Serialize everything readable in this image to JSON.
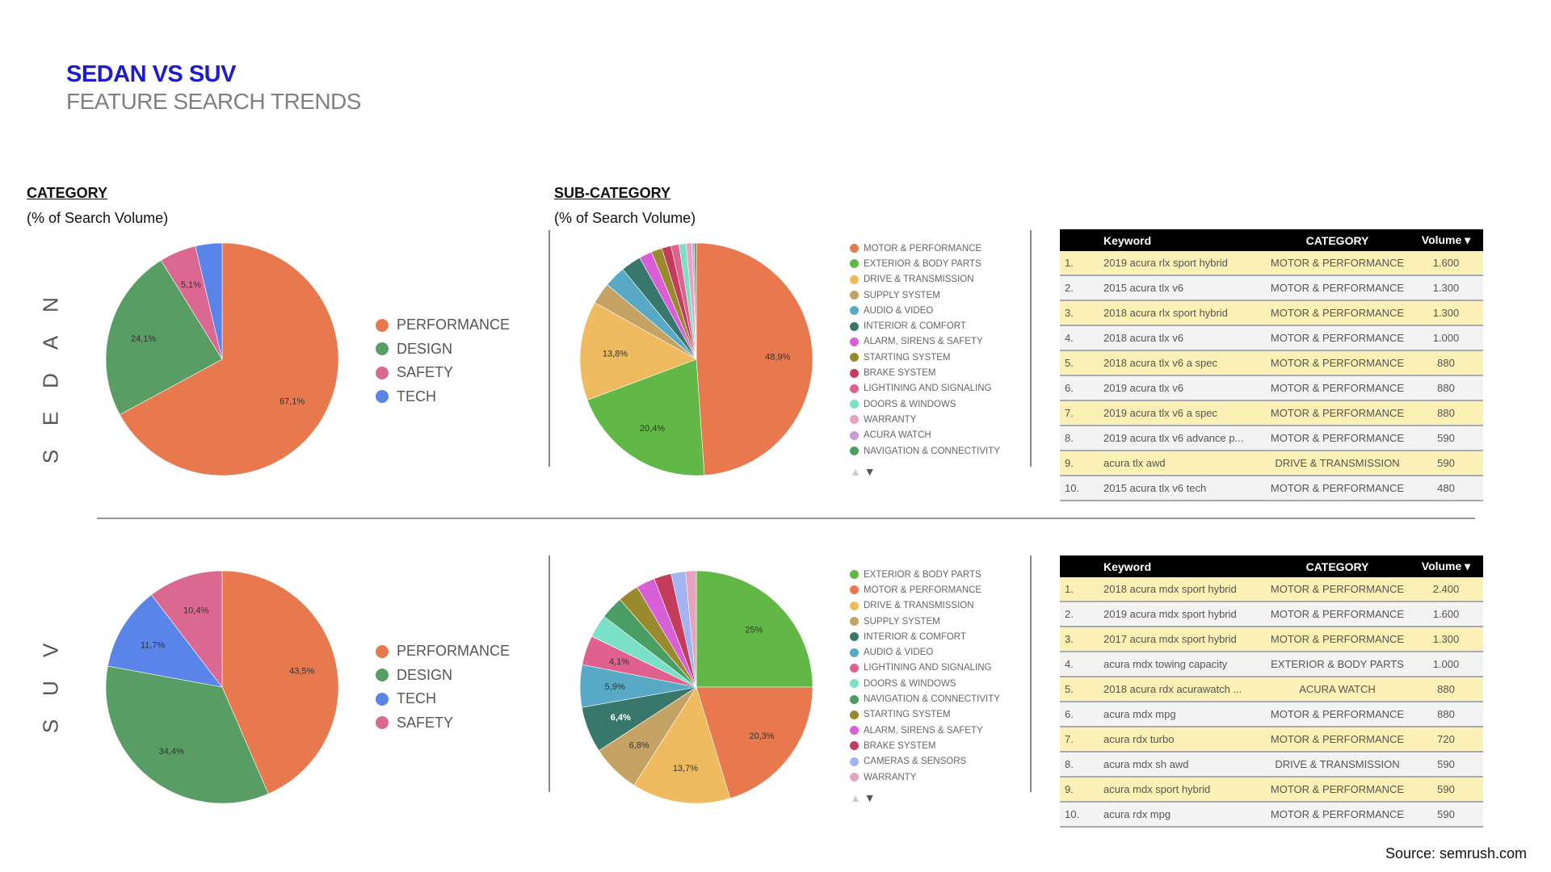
{
  "header": {
    "title": "SEDAN VS SUV",
    "subtitle": "FEATURE SEARCH TRENDS"
  },
  "sections": {
    "category": "CATEGORY",
    "category_sub": "(% of Search Volume)",
    "subcategory": "SUB-CATEGORY",
    "subcategory_sub": "(% of Search Volume)"
  },
  "rows": {
    "sedan": "SEDAN",
    "suv": "SUV"
  },
  "source": "Source: semrush.com",
  "chart_data": [
    {
      "id": "sedan-category",
      "type": "pie",
      "labels": [
        "PERFORMANCE",
        "DESIGN",
        "SAFETY",
        "TECH"
      ],
      "values": [
        67.1,
        24.1,
        5.1,
        3.7
      ],
      "colors": [
        "#e8784d",
        "#579d64",
        "#db6890",
        "#5b84e8"
      ],
      "legend": "right"
    },
    {
      "id": "sedan-subcategory",
      "type": "pie",
      "labels": [
        "MOTOR & PERFORMANCE",
        "EXTERIOR & BODY PARTS",
        "DRIVE & TRANSMISSION",
        "SUPPLY SYSTEM",
        "AUDIO & VIDEO",
        "INTERIOR & COMFORT",
        "ALARM, SIRENS & SAFETY",
        "STARTING SYSTEM",
        "BRAKE SYSTEM",
        "LIGHTINING AND SIGNALING",
        "DOORS & WINDOWS",
        "WARRANTY",
        "ACURA WATCH",
        "NAVIGATION & CONNECTIVITY"
      ],
      "values": [
        48.9,
        20.4,
        13.8,
        3.0,
        3.0,
        2.8,
        1.8,
        1.5,
        1.3,
        1.1,
        1.0,
        0.8,
        0.3,
        0.3
      ],
      "colors": [
        "#e8784d",
        "#62b846",
        "#f0bb5e",
        "#c5a365",
        "#57a9c5",
        "#38776b",
        "#d95fd9",
        "#9a8a2e",
        "#c43c5c",
        "#e0608e",
        "#7ae0c8",
        "#e8a2c0",
        "#c89ad8",
        "#4a9e64"
      ],
      "legend": "right"
    },
    {
      "id": "suv-category",
      "type": "pie",
      "labels": [
        "PERFORMANCE",
        "DESIGN",
        "TECH",
        "SAFETY"
      ],
      "values": [
        43.5,
        34.4,
        11.7,
        10.4
      ],
      "colors": [
        "#e8784d",
        "#579d64",
        "#5b84e8",
        "#db6890"
      ],
      "legend": "right"
    },
    {
      "id": "suv-subcategory",
      "type": "pie",
      "labels": [
        "EXTERIOR & BODY PARTS",
        "MOTOR & PERFORMANCE",
        "DRIVE & TRANSMISSION",
        "SUPPLY SYSTEM",
        "INTERIOR & COMFORT",
        "AUDIO & VIDEO",
        "LIGHTINING AND SIGNALING",
        "DOORS & WINDOWS",
        "NAVIGATION & CONNECTIVITY",
        "STARTING SYSTEM",
        "ALARM, SIRENS & SAFETY",
        "BRAKE SYSTEM",
        "CAMERAS & SENSORS",
        "WARRANTY"
      ],
      "values": [
        25,
        20.3,
        13.7,
        6.8,
        6.4,
        5.9,
        4.1,
        3.2,
        3.2,
        2.9,
        2.6,
        2.4,
        2.0,
        1.5
      ],
      "colors": [
        "#62b846",
        "#e8784d",
        "#f0bb5e",
        "#c5a365",
        "#38776b",
        "#57a9c5",
        "#e0608e",
        "#7ae0c8",
        "#4a9e64",
        "#9a8a2e",
        "#d95fd9",
        "#c43c5c",
        "#a2b4f2",
        "#e8a2c0"
      ],
      "legend": "right"
    }
  ],
  "tables": [
    {
      "headers": [
        "Keyword",
        "CATEGORY",
        "Volume ▾"
      ],
      "rows": [
        [
          "1.",
          "2019 acura rlx sport hybrid",
          "MOTOR & PERFORMANCE",
          "1.600"
        ],
        [
          "2.",
          "2015 acura tlx v6",
          "MOTOR & PERFORMANCE",
          "1.300"
        ],
        [
          "3.",
          "2018 acura rlx sport hybrid",
          "MOTOR & PERFORMANCE",
          "1.300"
        ],
        [
          "4.",
          "2018 acura tlx v6",
          "MOTOR & PERFORMANCE",
          "1.000"
        ],
        [
          "5.",
          "2018 acura tlx v6 a spec",
          "MOTOR & PERFORMANCE",
          "880"
        ],
        [
          "6.",
          "2019 acura tlx v6",
          "MOTOR & PERFORMANCE",
          "880"
        ],
        [
          "7.",
          "2019 acura tlx v6 a spec",
          "MOTOR & PERFORMANCE",
          "880"
        ],
        [
          "8.",
          "2019 acura tlx v6 advance p...",
          "MOTOR & PERFORMANCE",
          "590"
        ],
        [
          "9.",
          "acura tlx awd",
          "DRIVE & TRANSMISSION",
          "590"
        ],
        [
          "10.",
          "2015 acura tlx v6 tech",
          "MOTOR & PERFORMANCE",
          "480"
        ]
      ]
    },
    {
      "headers": [
        "Keyword",
        "CATEGORY",
        "Volume ▾"
      ],
      "rows": [
        [
          "1.",
          "2018 acura mdx sport hybrid",
          "MOTOR & PERFORMANCE",
          "2.400"
        ],
        [
          "2.",
          "2019 acura mdx sport hybrid",
          "MOTOR & PERFORMANCE",
          "1.600"
        ],
        [
          "3.",
          "2017 acura mdx sport hybrid",
          "MOTOR & PERFORMANCE",
          "1.300"
        ],
        [
          "4.",
          "acura mdx towing capacity",
          "EXTERIOR & BODY PARTS",
          "1.000"
        ],
        [
          "5.",
          "2018 acura rdx acurawatch ...",
          "ACURA WATCH",
          "880"
        ],
        [
          "6.",
          "acura mdx mpg",
          "MOTOR & PERFORMANCE",
          "880"
        ],
        [
          "7.",
          "acura rdx turbo",
          "MOTOR & PERFORMANCE",
          "720"
        ],
        [
          "8.",
          "acura mdx sh awd",
          "DRIVE & TRANSMISSION",
          "590"
        ],
        [
          "9.",
          "acura mdx sport hybrid",
          "MOTOR & PERFORMANCE",
          "590"
        ],
        [
          "10.",
          "acura rdx mpg",
          "MOTOR & PERFORMANCE",
          "590"
        ]
      ]
    }
  ],
  "pager": {
    "up": "▲",
    "down": "▼"
  }
}
